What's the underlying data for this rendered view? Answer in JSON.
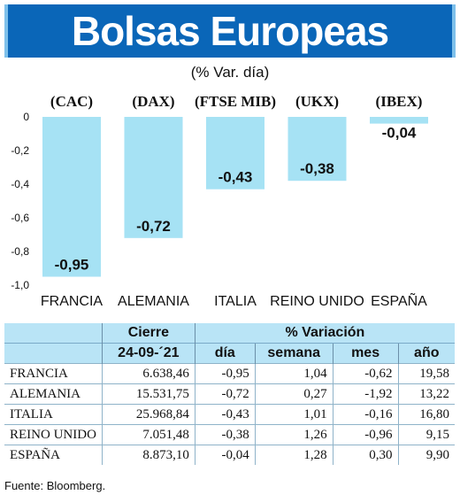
{
  "title": "Bolsas Europeas",
  "subtitle": "(% Var. día)",
  "colors": {
    "bar": "#a6e2f4",
    "title_bg": "#0a66b8",
    "table_header": "#b9e4f6"
  },
  "chart_data": {
    "type": "bar",
    "categories": [
      "FRANCIA",
      "ALEMANIA",
      "ITALIA",
      "REINO UNIDO",
      "ESPAÑA"
    ],
    "indices": [
      "(CAC)",
      "(DAX)",
      "(FTSE MIB)",
      "(UKX)",
      "(IBEX)"
    ],
    "values": [
      -0.95,
      -0.72,
      -0.43,
      -0.38,
      -0.04
    ],
    "value_labels": [
      "-0,95",
      "-0,72",
      "-0,43",
      "-0,38",
      "-0,04"
    ],
    "ylim": [
      -1.0,
      0
    ],
    "yticks": [
      0,
      -0.2,
      -0.4,
      -0.6,
      -0.8,
      -1.0
    ],
    "ytick_labels": [
      "0",
      "-0,2",
      "-0,4",
      "-0,6",
      "-0,8",
      "-1,0"
    ],
    "grid": false
  },
  "table": {
    "header1": [
      "",
      "Cierre",
      "% Variación"
    ],
    "header2": [
      "",
      "24-09-´21",
      "día",
      "semana",
      "mes",
      "año"
    ],
    "rows": [
      [
        "FRANCIA",
        "6.638,46",
        "-0,95",
        "1,04",
        "-0,62",
        "19,58"
      ],
      [
        "ALEMANIA",
        "15.531,75",
        "-0,72",
        "0,27",
        "-1,92",
        "13,22"
      ],
      [
        "ITALIA",
        "25.968,84",
        "-0,43",
        "1,01",
        "-0,16",
        "16,80"
      ],
      [
        "REINO UNIDO",
        "7.051,48",
        "-0,38",
        "1,26",
        "-0,96",
        "9,15"
      ],
      [
        "ESPAÑA",
        "8.873,10",
        "-0,04",
        "1,28",
        "0,30",
        "9,90"
      ]
    ]
  },
  "source": "Fuente: Bloomberg."
}
